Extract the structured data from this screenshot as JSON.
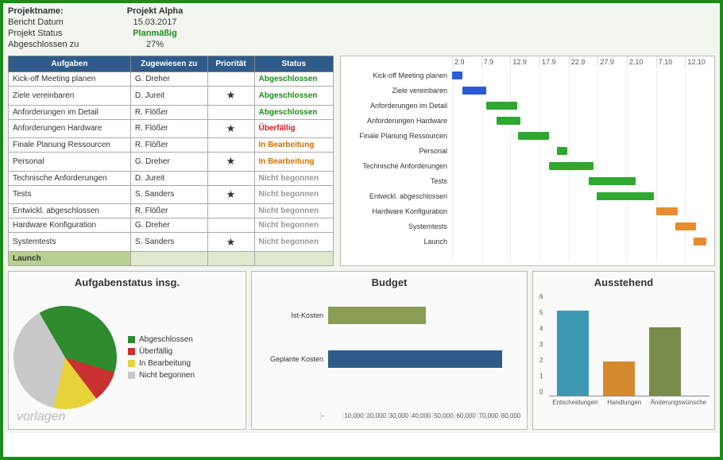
{
  "meta": {
    "projectname_label": "Projektname:",
    "projectname": "Projekt Alpha",
    "report_date_label": "Bericht Datum",
    "report_date": "15.03.2017",
    "status_label": "Projekt Status",
    "status": "Planmäßig",
    "completion_label": "Abgeschlossen zu",
    "completion": "27%"
  },
  "columns": {
    "task": "Aufgaben",
    "assignee": "Zugewiesen zu",
    "priority": "Priorität",
    "status": "Status"
  },
  "tasks": [
    {
      "name": "Kick-off Meeting planen",
      "assignee": "G. Dreher",
      "priority": "",
      "status": "Abgeschlossen",
      "status_color": "#1a8c1a"
    },
    {
      "name": "Ziele vereinbaren",
      "assignee": "D. Jureit",
      "priority": "★",
      "status": "Abgeschlossen",
      "status_color": "#1a8c1a"
    },
    {
      "name": "Anforderungen  im Detail",
      "assignee": "R. Flößer",
      "priority": "",
      "status": "Abgeschlossen",
      "status_color": "#1a8c1a"
    },
    {
      "name": "Anforderungen Hardware",
      "assignee": "R. Flößer",
      "priority": "★",
      "status": "Überfällig",
      "status_color": "#d02020"
    },
    {
      "name": "Finale Planung Ressourcen",
      "assignee": "R. Flößer",
      "priority": "",
      "status": "In Bearbeitung",
      "status_color": "#d07000"
    },
    {
      "name": "Personal",
      "assignee": "G. Dreher",
      "priority": "★",
      "status": "In Bearbeitung",
      "status_color": "#d07000"
    },
    {
      "name": "Technische Anforderungen",
      "assignee": "D. Jureit",
      "priority": "",
      "status": "Nicht begonnen",
      "status_color": "#999999"
    },
    {
      "name": "Tests",
      "assignee": "S. Sanders",
      "priority": "★",
      "status": "Nicht begonnen",
      "status_color": "#999999"
    },
    {
      "name": "Entwickl. abgeschlossen",
      "assignee": "R. Flößer",
      "priority": "",
      "status": "Nicht begonnen",
      "status_color": "#999999"
    },
    {
      "name": "Hardware Konfiguration",
      "assignee": "G. Dreher",
      "priority": "",
      "status": "Nicht begonnen",
      "status_color": "#999999"
    },
    {
      "name": "Systemtests",
      "assignee": "S. Sanders",
      "priority": "★",
      "status": "Nicht begonnen",
      "status_color": "#999999"
    }
  ],
  "launch_label": "Launch",
  "gantt": {
    "ticks": [
      "2.9",
      "7.9",
      "12.9",
      "17.9",
      "22.9",
      "27.9",
      "2.10",
      "7.10",
      "12.10"
    ],
    "rows": [
      {
        "label": "Kick-off Meeting planen",
        "start": 0,
        "width": 4,
        "color": "#2a5bd7"
      },
      {
        "label": "Ziele vereinbaren",
        "start": 4,
        "width": 9,
        "color": "#2a5bd7"
      },
      {
        "label": "Anforderungen  im Detail",
        "start": 13,
        "width": 12,
        "color": "#2ea82e"
      },
      {
        "label": "Anforderungen Hardware",
        "start": 17,
        "width": 9,
        "color": "#2ea82e"
      },
      {
        "label": "Finale Planung Ressourcen",
        "start": 25,
        "width": 12,
        "color": "#2ea82e"
      },
      {
        "label": "Personal",
        "start": 40,
        "width": 4,
        "color": "#2ea82e"
      },
      {
        "label": "Technische Anforderungen",
        "start": 37,
        "width": 17,
        "color": "#2ea82e"
      },
      {
        "label": "Tests",
        "start": 52,
        "width": 18,
        "color": "#2ea82e"
      },
      {
        "label": "Entwickl. abgeschlossen",
        "start": 55,
        "width": 22,
        "color": "#2ea82e"
      },
      {
        "label": "Hardware Konfiguration",
        "start": 78,
        "width": 8,
        "color": "#e98b2e"
      },
      {
        "label": "Systemtests",
        "start": 85,
        "width": 8,
        "color": "#e98b2e"
      },
      {
        "label": "Launch",
        "start": 92,
        "width": 5,
        "color": "#e98b2e"
      }
    ]
  },
  "pie": {
    "title": "Aufgabenstatus insg.",
    "slices": [
      {
        "label": "Abgeschlossen",
        "pct": 38,
        "color": "#2e8b2e"
      },
      {
        "label": "Überfällig",
        "pct": 10,
        "color": "#c93030"
      },
      {
        "label": "In Bearbeitung",
        "pct": 14,
        "color": "#e8d23a"
      },
      {
        "label": "Nicht begonnen",
        "pct": 38,
        "color": "#c9c9c9"
      }
    ]
  },
  "budget": {
    "title": "Budget",
    "xticks": [
      "-",
      "10,000",
      "20,000",
      "30,000",
      "40,000",
      "50,000",
      "60,000",
      "70,000",
      "80,000"
    ],
    "max": 80000,
    "bars": [
      {
        "label": "Ist-Kosten",
        "value": 42000,
        "color": "#8c9e55"
      },
      {
        "label": "Geplante Kosten",
        "value": 75000,
        "color": "#2e5b8a"
      }
    ]
  },
  "ausstehend": {
    "title": "Ausstehend",
    "ymax": 6,
    "bars": [
      {
        "label": "Entscheidungen",
        "value": 5,
        "color": "#3d99b3"
      },
      {
        "label": "Handlungen",
        "value": 2,
        "color": "#d48a2e"
      },
      {
        "label": "Änderungswünsche",
        "value": 4,
        "color": "#7a8c4a"
      }
    ]
  },
  "watermark": "vorlagen"
}
